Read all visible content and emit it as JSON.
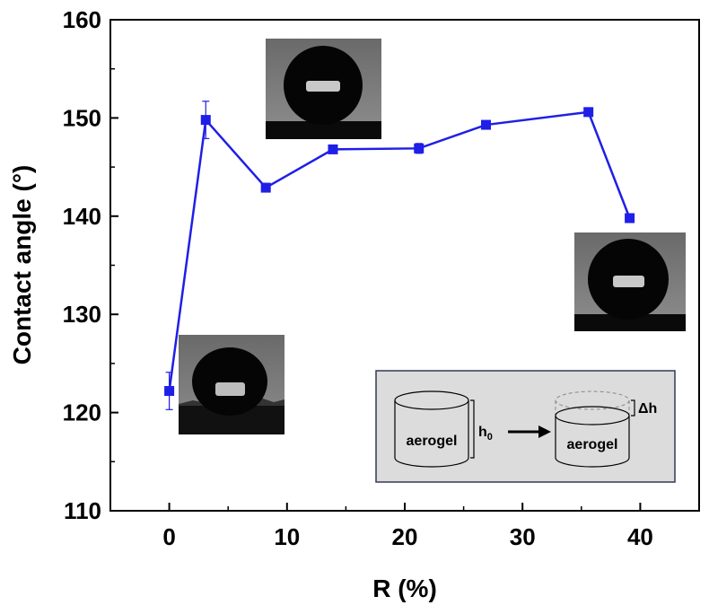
{
  "chart_data": {
    "type": "line",
    "title": "",
    "xlabel": "R (%)",
    "ylabel": "Contact angle (°)",
    "xlim": [
      -5,
      45
    ],
    "ylim": [
      110,
      160
    ],
    "xticks": [
      0,
      10,
      20,
      30,
      40
    ],
    "yticks": [
      110,
      120,
      130,
      140,
      150,
      160
    ],
    "xtick_labels": [
      "0",
      "10",
      "20",
      "30",
      "40"
    ],
    "ytick_labels": [
      "110",
      "120",
      "130",
      "140",
      "150",
      "160"
    ],
    "grid": false,
    "series": [
      {
        "x": [
          0,
          3.1,
          8.2,
          13.9,
          21.2,
          26.9,
          35.6,
          39.1
        ],
        "y": [
          122.2,
          149.8,
          142.9,
          146.8,
          146.9,
          149.3,
          150.6,
          139.8
        ],
        "err": [
          1.9,
          1.9,
          0.3,
          0.3,
          0.5,
          0.4,
          0.4,
          0.4
        ],
        "color": "#1f1fe6"
      }
    ],
    "inset": {
      "left_label": "aerogel",
      "right_label": "aerogel",
      "h0_label": "h",
      "h0_sub": "0",
      "dh_label": "Δh"
    }
  }
}
